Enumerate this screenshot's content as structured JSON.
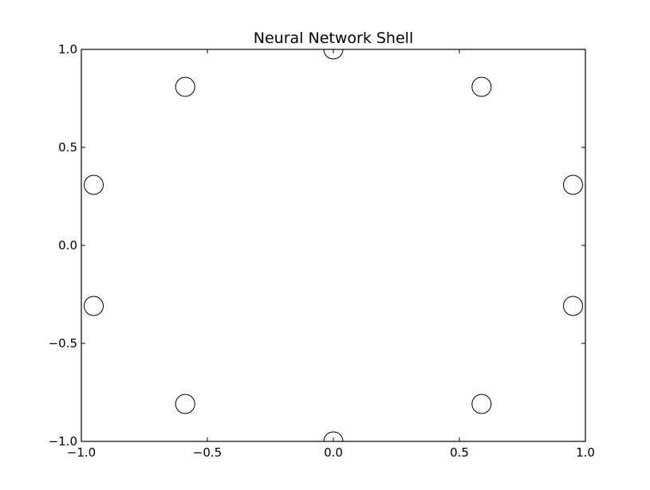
{
  "chart_data": {
    "type": "scatter",
    "title": "Neural Network Shell",
    "xlabel": "",
    "ylabel": "",
    "xlim": [
      -1.0,
      1.0
    ],
    "ylim": [
      -1.0,
      1.0
    ],
    "x_ticks": [
      -1.0,
      -0.5,
      0.0,
      0.5,
      1.0
    ],
    "y_ticks": [
      -1.0,
      -0.5,
      0.0,
      0.5,
      1.0
    ],
    "x_tick_labels": [
      "−1.0",
      "−0.5",
      "0.0",
      "0.5",
      "1.0"
    ],
    "y_tick_labels": [
      "−1.0",
      "−0.5",
      "0.0",
      "0.5",
      "1.0"
    ],
    "grid": false,
    "marker": "open-circle",
    "marker_color": "#000000",
    "series": [
      {
        "x": [
          0.0,
          0.588,
          0.951,
          0.951,
          0.588,
          0.0,
          -0.588,
          -0.951,
          -0.951,
          -0.588
        ],
        "y": [
          1.0,
          0.809,
          0.309,
          -0.309,
          -0.809,
          -1.0,
          -0.809,
          -0.309,
          0.309,
          0.809
        ]
      }
    ]
  }
}
